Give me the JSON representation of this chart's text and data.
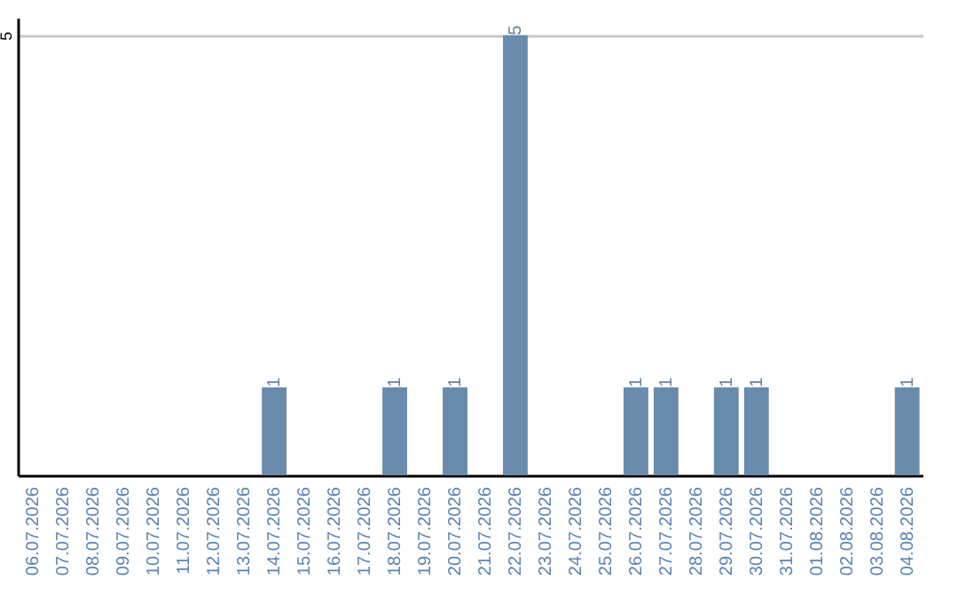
{
  "chart_data": {
    "type": "bar",
    "categories": [
      "06.07.2026",
      "07.07.2026",
      "08.07.2026",
      "09.07.2026",
      "10.07.2026",
      "11.07.2026",
      "12.07.2026",
      "13.07.2026",
      "14.07.2026",
      "15.07.2026",
      "16.07.2026",
      "17.07.2026",
      "18.07.2026",
      "19.07.2026",
      "20.07.2026",
      "21.07.2026",
      "22.07.2026",
      "23.07.2026",
      "24.07.2026",
      "25.07.2026",
      "26.07.2026",
      "27.07.2026",
      "28.07.2026",
      "29.07.2026",
      "30.07.2026",
      "31.07.2026",
      "01.08.2026",
      "02.08.2026",
      "03.08.2026",
      "04.08.2026"
    ],
    "values": [
      0,
      0,
      0,
      0,
      0,
      0,
      0,
      0,
      1,
      0,
      0,
      0,
      1,
      0,
      1,
      0,
      5,
      0,
      0,
      0,
      1,
      1,
      0,
      1,
      1,
      0,
      0,
      0,
      0,
      1
    ],
    "value_labels": [
      null,
      null,
      null,
      null,
      null,
      null,
      null,
      null,
      "1",
      null,
      null,
      null,
      "1",
      null,
      "1",
      null,
      "5",
      null,
      null,
      null,
      "1",
      "1",
      null,
      "1",
      "1",
      null,
      null,
      null,
      null,
      "1"
    ],
    "color": "#6a8bab",
    "ylim": [
      0,
      5.2
    ],
    "yticks": [
      5
    ],
    "grid": "y"
  }
}
